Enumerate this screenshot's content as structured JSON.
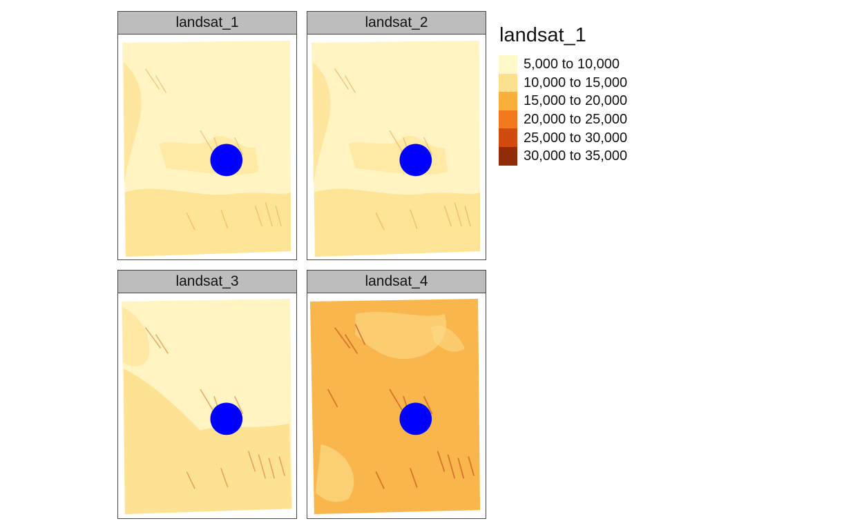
{
  "panels": [
    {
      "title": "landsat_1",
      "fill": "#fff4c2",
      "tint": "#fde08e",
      "ridge": "#e8a24a"
    },
    {
      "title": "landsat_2",
      "fill": "#fff4c2",
      "tint": "#fde08e",
      "ridge": "#e8a24a"
    },
    {
      "title": "landsat_3",
      "fill": "#fff4c2",
      "tint": "#fde08e",
      "ridge": "#d9782a"
    },
    {
      "title": "landsat_4",
      "fill": "#f8b64c",
      "tint": "#fde08e",
      "ridge": "#c8581c"
    }
  ],
  "marker": {
    "color": "#0000ff",
    "icon": "circle-marker"
  },
  "legend": {
    "title": "landsat_1",
    "items": [
      {
        "label": "5,000 to 10,000",
        "color": "#fff8c8"
      },
      {
        "label": "10,000 to 15,000",
        "color": "#fde08e"
      },
      {
        "label": "15,000 to 20,000",
        "color": "#fbb03e"
      },
      {
        "label": "20,000 to 25,000",
        "color": "#f27a1e"
      },
      {
        "label": "25,000 to 30,000",
        "color": "#d24a0e"
      },
      {
        "label": "30,000 to 35,000",
        "color": "#922b08"
      }
    ]
  }
}
